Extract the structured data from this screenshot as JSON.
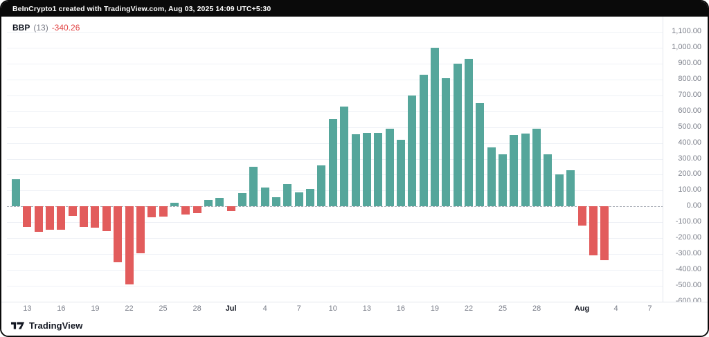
{
  "header": {
    "attribution": "BeInCrypto1 created with TradingView.com, Aug 03, 2025 14:09 UTC+5:30"
  },
  "legend": {
    "indicator": "BBP",
    "period": "(13)",
    "value": "-340.26"
  },
  "footer": {
    "brand": "TradingView",
    "logo_icon": "tradingview-mark"
  },
  "colors": {
    "background": "#FFFFFF",
    "frame": "#0A0A0A",
    "positive": "#55A69B",
    "negative": "#E25C5C",
    "value_red": "#E14545",
    "grid": "#EEF1F6",
    "axis_text": "#7A7E89",
    "axis_text_bold": "#131722",
    "zero_line": "#A9ADB6",
    "scale_border": "#E3E6EC"
  },
  "chart_data": {
    "type": "bar",
    "title": "BBP (13)",
    "xlabel": "",
    "ylabel": "",
    "ylim": [
      -600,
      1100
    ],
    "y_tick_step": 100,
    "grid": true,
    "legend_position": "top-left",
    "zero_line_style": "dashed",
    "y_ticks": [
      "1,100.00",
      "1,000.00",
      "900.00",
      "800.00",
      "700.00",
      "600.00",
      "500.00",
      "400.00",
      "300.00",
      "200.00",
      "100.00",
      "0.00",
      "-100.00",
      "-200.00",
      "-300.00",
      "-400.00",
      "-500.00",
      "-600.00"
    ],
    "x": [
      "Jun 12",
      "Jun 13",
      "Jun 14",
      "Jun 15",
      "Jun 16",
      "Jun 17",
      "Jun 18",
      "Jun 19",
      "Jun 20",
      "Jun 21",
      "Jun 22",
      "Jun 23",
      "Jun 24",
      "Jun 25",
      "Jun 26",
      "Jun 27",
      "Jun 28",
      "Jun 29",
      "Jun 30",
      "Jul 1",
      "Jul 2",
      "Jul 3",
      "Jul 4",
      "Jul 5",
      "Jul 6",
      "Jul 7",
      "Jul 8",
      "Jul 9",
      "Jul 10",
      "Jul 11",
      "Jul 12",
      "Jul 13",
      "Jul 14",
      "Jul 15",
      "Jul 16",
      "Jul 17",
      "Jul 18",
      "Jul 19",
      "Jul 20",
      "Jul 21",
      "Jul 22",
      "Jul 23",
      "Jul 24",
      "Jul 25",
      "Jul 26",
      "Jul 27",
      "Jul 28",
      "Jul 29",
      "Jul 30",
      "Jul 31",
      "Aug 1",
      "Aug 2",
      "Aug 3"
    ],
    "values": [
      170,
      -130,
      -160,
      -145,
      -145,
      -60,
      -130,
      -135,
      -155,
      -350,
      -490,
      -295,
      -70,
      -65,
      25,
      -50,
      -40,
      40,
      55,
      -30,
      85,
      250,
      120,
      60,
      140,
      90,
      110,
      260,
      550,
      630,
      455,
      465,
      465,
      490,
      420,
      700,
      830,
      1000,
      810,
      900,
      930,
      650,
      370,
      330,
      450,
      460,
      490,
      330,
      200,
      230,
      -120,
      -310,
      -340.26
    ],
    "x_ticks": [
      {
        "label": "13",
        "day_index": 1,
        "bold": false
      },
      {
        "label": "16",
        "day_index": 4,
        "bold": false
      },
      {
        "label": "19",
        "day_index": 7,
        "bold": false
      },
      {
        "label": "22",
        "day_index": 10,
        "bold": false
      },
      {
        "label": "25",
        "day_index": 13,
        "bold": false
      },
      {
        "label": "28",
        "day_index": 16,
        "bold": false
      },
      {
        "label": "Jul",
        "day_index": 19,
        "bold": true
      },
      {
        "label": "4",
        "day_index": 22,
        "bold": false
      },
      {
        "label": "7",
        "day_index": 25,
        "bold": false
      },
      {
        "label": "10",
        "day_index": 28,
        "bold": false
      },
      {
        "label": "13",
        "day_index": 31,
        "bold": false
      },
      {
        "label": "16",
        "day_index": 34,
        "bold": false
      },
      {
        "label": "19",
        "day_index": 37,
        "bold": false
      },
      {
        "label": "22",
        "day_index": 40,
        "bold": false
      },
      {
        "label": "25",
        "day_index": 43,
        "bold": false
      },
      {
        "label": "28",
        "day_index": 46,
        "bold": false
      },
      {
        "label": "Aug",
        "day_index": 50,
        "bold": true
      },
      {
        "label": "4",
        "day_index": 53,
        "bold": false
      },
      {
        "label": "7",
        "day_index": 56,
        "bold": false
      }
    ]
  }
}
